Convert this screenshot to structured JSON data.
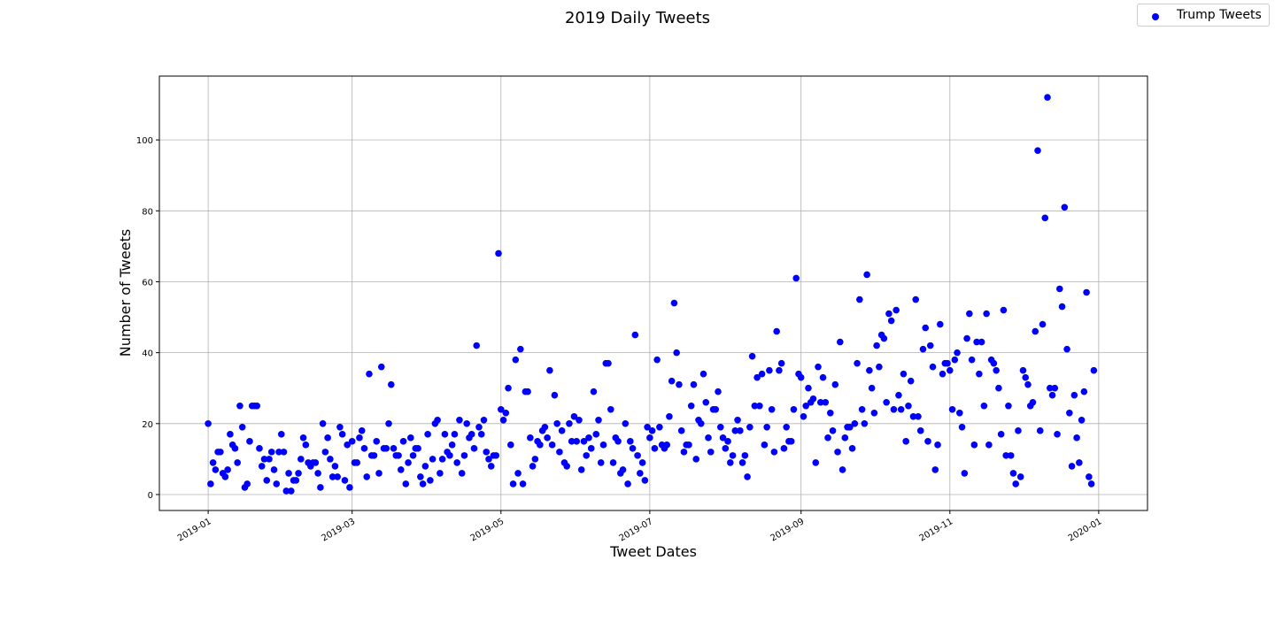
{
  "chart_data": {
    "type": "scatter",
    "title": "2019 Daily Tweets",
    "xlabel": "Tweet Dates",
    "ylabel": "Number of Tweets",
    "series": [
      {
        "name": "Trump Tweets",
        "color": "#0000ff",
        "start_date": "2019-01-01",
        "values": [
          20,
          3,
          9,
          7,
          12,
          12,
          6,
          5,
          7,
          17,
          14,
          13,
          9,
          25,
          19,
          2,
          3,
          15,
          25,
          25,
          25,
          13,
          8,
          10,
          4,
          10,
          12,
          7,
          3,
          12,
          17,
          12,
          1,
          6,
          1,
          4,
          4,
          6,
          10,
          16,
          14,
          9,
          8,
          9,
          9,
          6,
          2,
          20,
          12,
          16,
          10,
          5,
          8,
          5,
          19,
          17,
          4,
          14,
          2,
          15,
          9,
          9,
          16,
          18,
          13,
          5,
          34,
          11,
          11,
          15,
          6,
          36,
          13,
          13,
          20,
          31,
          13,
          11,
          11,
          7,
          15,
          3,
          9,
          16,
          11,
          13,
          13,
          5,
          3,
          8,
          17,
          4,
          10,
          20,
          21,
          6,
          10,
          17,
          12,
          11,
          14,
          17,
          9,
          21,
          6,
          11,
          20,
          16,
          17,
          13,
          42,
          19,
          17,
          21,
          12,
          10,
          8,
          11,
          11,
          68,
          24,
          21,
          23,
          30,
          14,
          3,
          38,
          6,
          41,
          3,
          29,
          29,
          16,
          8,
          10,
          15,
          14,
          18,
          19,
          16,
          35,
          14,
          28,
          20,
          12,
          18,
          9,
          8,
          20,
          15,
          22,
          15,
          21,
          7,
          15,
          11,
          16,
          13,
          29,
          17,
          21,
          9,
          14,
          37,
          37,
          24,
          9,
          16,
          15,
          6,
          7,
          20,
          3,
          15,
          13,
          45,
          11,
          6,
          9,
          4,
          19,
          16,
          18,
          13,
          38,
          19,
          14,
          13,
          14,
          22,
          32,
          54,
          40,
          31,
          18,
          12,
          14,
          14,
          25,
          31,
          10,
          21,
          20,
          34,
          26,
          16,
          12,
          24,
          24,
          29,
          19,
          16,
          13,
          15,
          9,
          11,
          18,
          21,
          18,
          9,
          11,
          5,
          19,
          39,
          25,
          33,
          25,
          34,
          14,
          19,
          35,
          24,
          12,
          46,
          35,
          37,
          13,
          19,
          15,
          15,
          24,
          61,
          34,
          33,
          22,
          25,
          30,
          26,
          27,
          9,
          36,
          26,
          33,
          26,
          16,
          23,
          18,
          31,
          12,
          43,
          7,
          16,
          19,
          19,
          13,
          20,
          37,
          55,
          24,
          20,
          62,
          35,
          30,
          23,
          42,
          36,
          45,
          44,
          26,
          51,
          49,
          24,
          52,
          28,
          24,
          34,
          15,
          25,
          32,
          22,
          55,
          22,
          18,
          41,
          47,
          15,
          42,
          36,
          7,
          14,
          48,
          34,
          37,
          37,
          35,
          24,
          38,
          40,
          23,
          19,
          6,
          44,
          51,
          38,
          14,
          43,
          34,
          43,
          25,
          51,
          14,
          38,
          37,
          35,
          30,
          17,
          52,
          11,
          25,
          11,
          6,
          3,
          18,
          5,
          35,
          33,
          31,
          25,
          26,
          46,
          97,
          18,
          48,
          78,
          112,
          30,
          28,
          30,
          17,
          58,
          53,
          81,
          41,
          23,
          8,
          28,
          16,
          9,
          21,
          29,
          57,
          5,
          3,
          35
        ]
      }
    ],
    "x_ticks": [
      "2019-01",
      "2019-03",
      "2019-05",
      "2019-07",
      "2019-09",
      "2019-11",
      "2020-01"
    ],
    "y_ticks": [
      0,
      20,
      40,
      60,
      80,
      100
    ],
    "xlim": [
      "2018-12-12",
      "2020-01-21"
    ],
    "ylim": [
      -4.5,
      118
    ],
    "grid": true,
    "legend_position": "top-right"
  }
}
